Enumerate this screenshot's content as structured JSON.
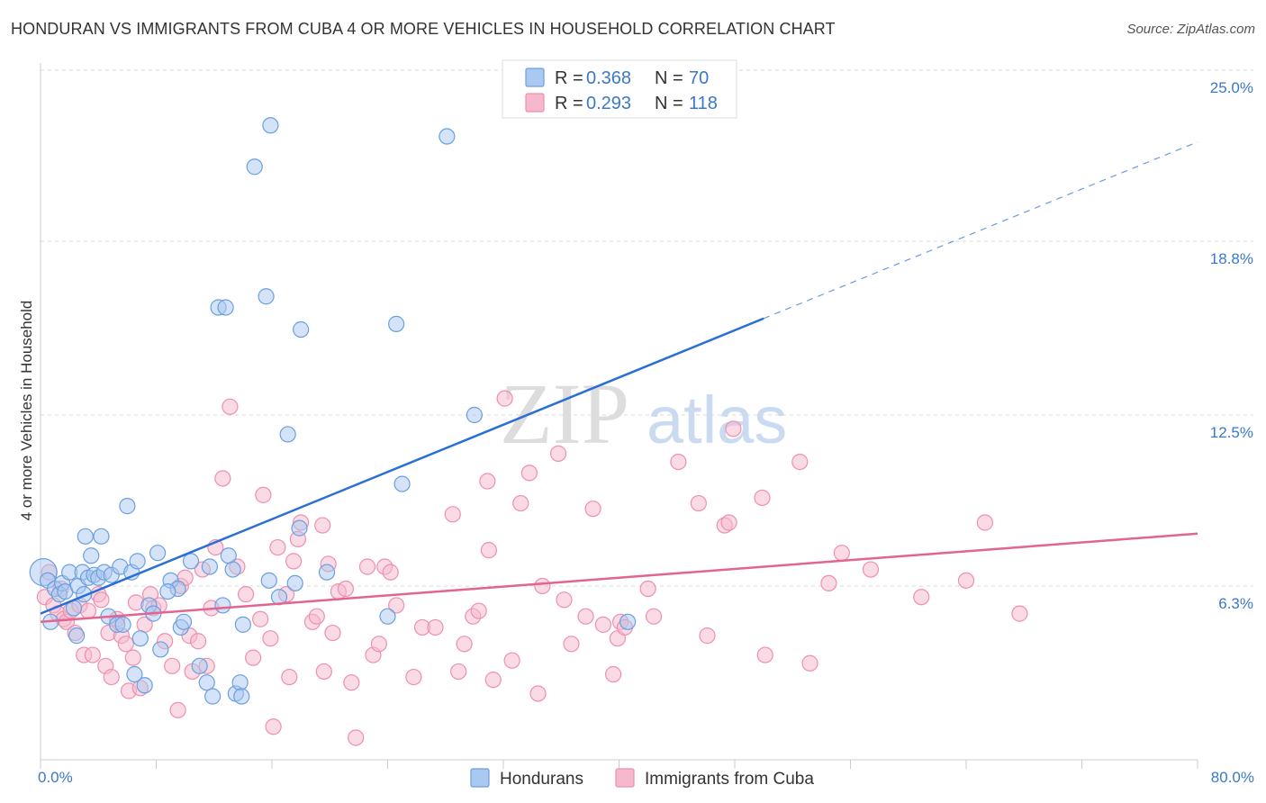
{
  "title": "HONDURAN VS IMMIGRANTS FROM CUBA 4 OR MORE VEHICLES IN HOUSEHOLD CORRELATION CHART",
  "source": "Source: ZipAtlas.com",
  "watermark": {
    "zip": "ZIP",
    "atlas": "atlas"
  },
  "colors": {
    "blue_fill": "#aac8f0",
    "blue_stroke": "#6a9fe0",
    "blue_line": "#2a6fd6",
    "pink_fill": "#f5b8cc",
    "pink_stroke": "#ee8fae",
    "pink_line": "#e2648f",
    "tick_text": "#3a78c9",
    "grid": "#d9d9d9"
  },
  "legend": {
    "rows": [
      {
        "r_label": "R = ",
        "r_value": "0.368",
        "n_label": "N = ",
        "n_value": "70",
        "series": "blue"
      },
      {
        "r_label": "R = ",
        "r_value": "0.293",
        "n_label": "N = ",
        "n_value": "118",
        "series": "pink"
      }
    ]
  },
  "chart_data": {
    "type": "scatter",
    "title": "HONDURAN VS IMMIGRANTS FROM CUBA 4 OR MORE VEHICLES IN HOUSEHOLD CORRELATION CHART",
    "xlabel": "",
    "ylabel": "4 or more Vehicles in Household",
    "xlim": [
      0,
      80
    ],
    "ylim": [
      0,
      25
    ],
    "x_tick_labels": [
      {
        "value": 0,
        "label": "0.0%"
      },
      {
        "value": 80,
        "label": "80.0%"
      }
    ],
    "y_tick_labels": [
      {
        "value": 6.3,
        "label": "6.3%"
      },
      {
        "value": 12.5,
        "label": "12.5%"
      },
      {
        "value": 18.8,
        "label": "18.8%"
      },
      {
        "value": 25.0,
        "label": "25.0%"
      }
    ],
    "series": [
      {
        "name": "Hondurans",
        "color": "blue",
        "trend": {
          "x0": 0,
          "y0": 5.3,
          "x1": 50,
          "y1": 16.0,
          "dashed_x1": 80,
          "dashed_y1": 22.4
        },
        "points": [
          [
            0.2,
            6.8
          ],
          [
            0.5,
            6.5
          ],
          [
            0.7,
            5.0
          ],
          [
            1.0,
            6.2
          ],
          [
            1.3,
            6.0
          ],
          [
            1.5,
            6.4
          ],
          [
            1.7,
            6.1
          ],
          [
            2.0,
            6.8
          ],
          [
            2.3,
            5.5
          ],
          [
            2.6,
            6.3
          ],
          [
            2.9,
            6.8
          ],
          [
            3.1,
            8.1
          ],
          [
            3.3,
            6.6
          ],
          [
            3.5,
            7.4
          ],
          [
            3.7,
            6.7
          ],
          [
            4.0,
            6.6
          ],
          [
            4.2,
            8.1
          ],
          [
            4.4,
            6.8
          ],
          [
            4.7,
            5.2
          ],
          [
            4.9,
            6.7
          ],
          [
            5.3,
            4.9
          ],
          [
            5.5,
            7.0
          ],
          [
            5.7,
            4.9
          ],
          [
            6.0,
            9.2
          ],
          [
            6.3,
            6.8
          ],
          [
            6.5,
            3.1
          ],
          [
            6.7,
            7.2
          ],
          [
            6.9,
            4.4
          ],
          [
            7.2,
            2.7
          ],
          [
            7.5,
            5.6
          ],
          [
            7.8,
            5.3
          ],
          [
            8.1,
            7.5
          ],
          [
            8.3,
            4.0
          ],
          [
            9.0,
            6.5
          ],
          [
            9.5,
            6.2
          ],
          [
            9.7,
            4.8
          ],
          [
            9.9,
            5.0
          ],
          [
            10.4,
            7.2
          ],
          [
            11.0,
            3.4
          ],
          [
            11.5,
            2.8
          ],
          [
            11.7,
            7.0
          ],
          [
            11.9,
            2.3
          ],
          [
            12.3,
            16.4
          ],
          [
            12.6,
            5.6
          ],
          [
            12.8,
            16.4
          ],
          [
            13.0,
            7.4
          ],
          [
            13.3,
            6.9
          ],
          [
            13.5,
            2.4
          ],
          [
            13.8,
            2.8
          ],
          [
            13.9,
            2.3
          ],
          [
            14.0,
            4.9
          ],
          [
            14.8,
            21.5
          ],
          [
            15.6,
            16.8
          ],
          [
            15.8,
            6.5
          ],
          [
            15.9,
            23.0
          ],
          [
            16.5,
            5.9
          ],
          [
            17.1,
            11.8
          ],
          [
            17.6,
            6.4
          ],
          [
            17.9,
            8.4
          ],
          [
            18.0,
            15.6
          ],
          [
            19.8,
            6.8
          ],
          [
            24.0,
            5.2
          ],
          [
            24.6,
            15.8
          ],
          [
            25.0,
            10.0
          ],
          [
            28.1,
            22.6
          ],
          [
            30.0,
            12.5
          ],
          [
            40.6,
            5.0
          ],
          [
            3.0,
            6.0
          ],
          [
            2.5,
            4.5
          ],
          [
            8.8,
            6.1
          ]
        ]
      },
      {
        "name": "Immigrants from Cuba",
        "color": "pink",
        "trend": {
          "x0": 0,
          "y0": 5.0,
          "x1": 80,
          "y1": 8.2
        },
        "points": [
          [
            0.3,
            5.9
          ],
          [
            0.6,
            6.8
          ],
          [
            0.9,
            5.6
          ],
          [
            1.2,
            5.3
          ],
          [
            1.4,
            6.2
          ],
          [
            1.6,
            5.1
          ],
          [
            1.8,
            5.0
          ],
          [
            2.1,
            5.4
          ],
          [
            2.4,
            4.6
          ],
          [
            2.7,
            5.6
          ],
          [
            3.0,
            3.8
          ],
          [
            3.3,
            5.4
          ],
          [
            3.6,
            3.8
          ],
          [
            4.0,
            6.0
          ],
          [
            4.2,
            5.8
          ],
          [
            4.5,
            3.4
          ],
          [
            4.7,
            4.6
          ],
          [
            4.9,
            3.0
          ],
          [
            5.3,
            5.1
          ],
          [
            5.6,
            4.5
          ],
          [
            5.9,
            4.2
          ],
          [
            6.1,
            2.5
          ],
          [
            6.4,
            3.7
          ],
          [
            6.6,
            5.7
          ],
          [
            6.9,
            2.6
          ],
          [
            7.2,
            4.9
          ],
          [
            7.6,
            6.0
          ],
          [
            7.8,
            5.5
          ],
          [
            8.2,
            5.6
          ],
          [
            8.6,
            4.3
          ],
          [
            9.1,
            3.4
          ],
          [
            9.5,
            1.8
          ],
          [
            9.7,
            6.3
          ],
          [
            10.0,
            6.6
          ],
          [
            10.3,
            4.5
          ],
          [
            10.5,
            3.2
          ],
          [
            10.9,
            4.3
          ],
          [
            11.2,
            6.9
          ],
          [
            11.5,
            3.4
          ],
          [
            11.8,
            5.5
          ],
          [
            12.1,
            7.7
          ],
          [
            12.6,
            10.2
          ],
          [
            13.1,
            12.8
          ],
          [
            13.6,
            7.0
          ],
          [
            14.2,
            6.0
          ],
          [
            14.7,
            3.7
          ],
          [
            15.2,
            5.1
          ],
          [
            15.4,
            9.6
          ],
          [
            15.9,
            4.4
          ],
          [
            16.1,
            1.2
          ],
          [
            16.4,
            7.7
          ],
          [
            17.0,
            6.0
          ],
          [
            17.2,
            3.0
          ],
          [
            17.5,
            7.2
          ],
          [
            17.8,
            8.0
          ],
          [
            18.0,
            8.6
          ],
          [
            18.8,
            5.0
          ],
          [
            19.1,
            5.2
          ],
          [
            19.5,
            8.5
          ],
          [
            19.6,
            3.2
          ],
          [
            19.9,
            7.1
          ],
          [
            20.2,
            4.6
          ],
          [
            20.6,
            6.1
          ],
          [
            21.1,
            6.2
          ],
          [
            21.5,
            2.8
          ],
          [
            21.8,
            0.8
          ],
          [
            22.6,
            7.0
          ],
          [
            23.0,
            3.8
          ],
          [
            23.4,
            4.2
          ],
          [
            23.8,
            7.0
          ],
          [
            24.2,
            6.8
          ],
          [
            24.6,
            5.6
          ],
          [
            25.8,
            3.0
          ],
          [
            26.4,
            4.8
          ],
          [
            27.3,
            4.8
          ],
          [
            28.5,
            8.9
          ],
          [
            28.9,
            3.2
          ],
          [
            29.3,
            4.2
          ],
          [
            29.9,
            5.2
          ],
          [
            30.3,
            5.4
          ],
          [
            30.9,
            10.1
          ],
          [
            31.0,
            7.6
          ],
          [
            31.3,
            2.9
          ],
          [
            32.1,
            13.1
          ],
          [
            32.6,
            3.6
          ],
          [
            33.2,
            9.3
          ],
          [
            33.8,
            10.4
          ],
          [
            34.4,
            2.4
          ],
          [
            34.7,
            6.3
          ],
          [
            35.8,
            11.1
          ],
          [
            36.2,
            5.8
          ],
          [
            36.7,
            4.2
          ],
          [
            37.7,
            5.2
          ],
          [
            38.2,
            9.1
          ],
          [
            38.9,
            4.9
          ],
          [
            39.6,
            3.1
          ],
          [
            39.9,
            4.4
          ],
          [
            40.1,
            5.0
          ],
          [
            40.4,
            4.8
          ],
          [
            42.0,
            6.2
          ],
          [
            42.4,
            5.2
          ],
          [
            44.1,
            10.8
          ],
          [
            45.5,
            9.3
          ],
          [
            46.1,
            4.5
          ],
          [
            47.3,
            8.5
          ],
          [
            47.6,
            8.6
          ],
          [
            47.9,
            12.0
          ],
          [
            49.9,
            9.5
          ],
          [
            50.1,
            3.8
          ],
          [
            52.5,
            10.8
          ],
          [
            53.2,
            3.5
          ],
          [
            54.5,
            6.4
          ],
          [
            55.4,
            7.5
          ],
          [
            57.4,
            6.9
          ],
          [
            60.9,
            5.9
          ],
          [
            64.0,
            6.5
          ],
          [
            65.3,
            8.6
          ],
          [
            67.7,
            5.3
          ]
        ]
      }
    ]
  },
  "bottom_legend": [
    {
      "label": "Hondurans",
      "series": "blue"
    },
    {
      "label": "Immigrants from Cuba",
      "series": "pink"
    }
  ]
}
